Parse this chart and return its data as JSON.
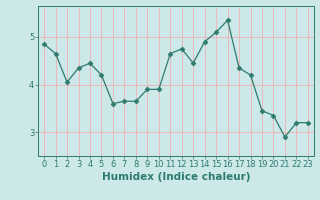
{
  "x": [
    0,
    1,
    2,
    3,
    4,
    5,
    6,
    7,
    8,
    9,
    10,
    11,
    12,
    13,
    14,
    15,
    16,
    17,
    18,
    19,
    20,
    21,
    22,
    23
  ],
  "y": [
    4.85,
    4.65,
    4.05,
    4.35,
    4.45,
    4.2,
    3.6,
    3.65,
    3.65,
    3.9,
    3.9,
    4.65,
    4.75,
    4.45,
    4.9,
    5.1,
    5.35,
    4.35,
    4.2,
    3.45,
    3.35,
    2.9,
    3.2,
    3.2
  ],
  "line_color": "#2e7b6f",
  "marker": "D",
  "marker_size": 2.5,
  "bg_color": "#cce8e8",
  "grid_color": "#f0b0b0",
  "axis_color": "#2e7b6f",
  "xlabel": "Humidex (Indice chaleur)",
  "xlabel_fontsize": 7.5,
  "tick_fontsize": 6,
  "ylim": [
    2.5,
    5.65
  ],
  "xlim": [
    -0.5,
    23.5
  ],
  "yticks": [
    3,
    4,
    5
  ],
  "xticks": [
    0,
    1,
    2,
    3,
    4,
    5,
    6,
    7,
    8,
    9,
    10,
    11,
    12,
    13,
    14,
    15,
    16,
    17,
    18,
    19,
    20,
    21,
    22,
    23
  ]
}
